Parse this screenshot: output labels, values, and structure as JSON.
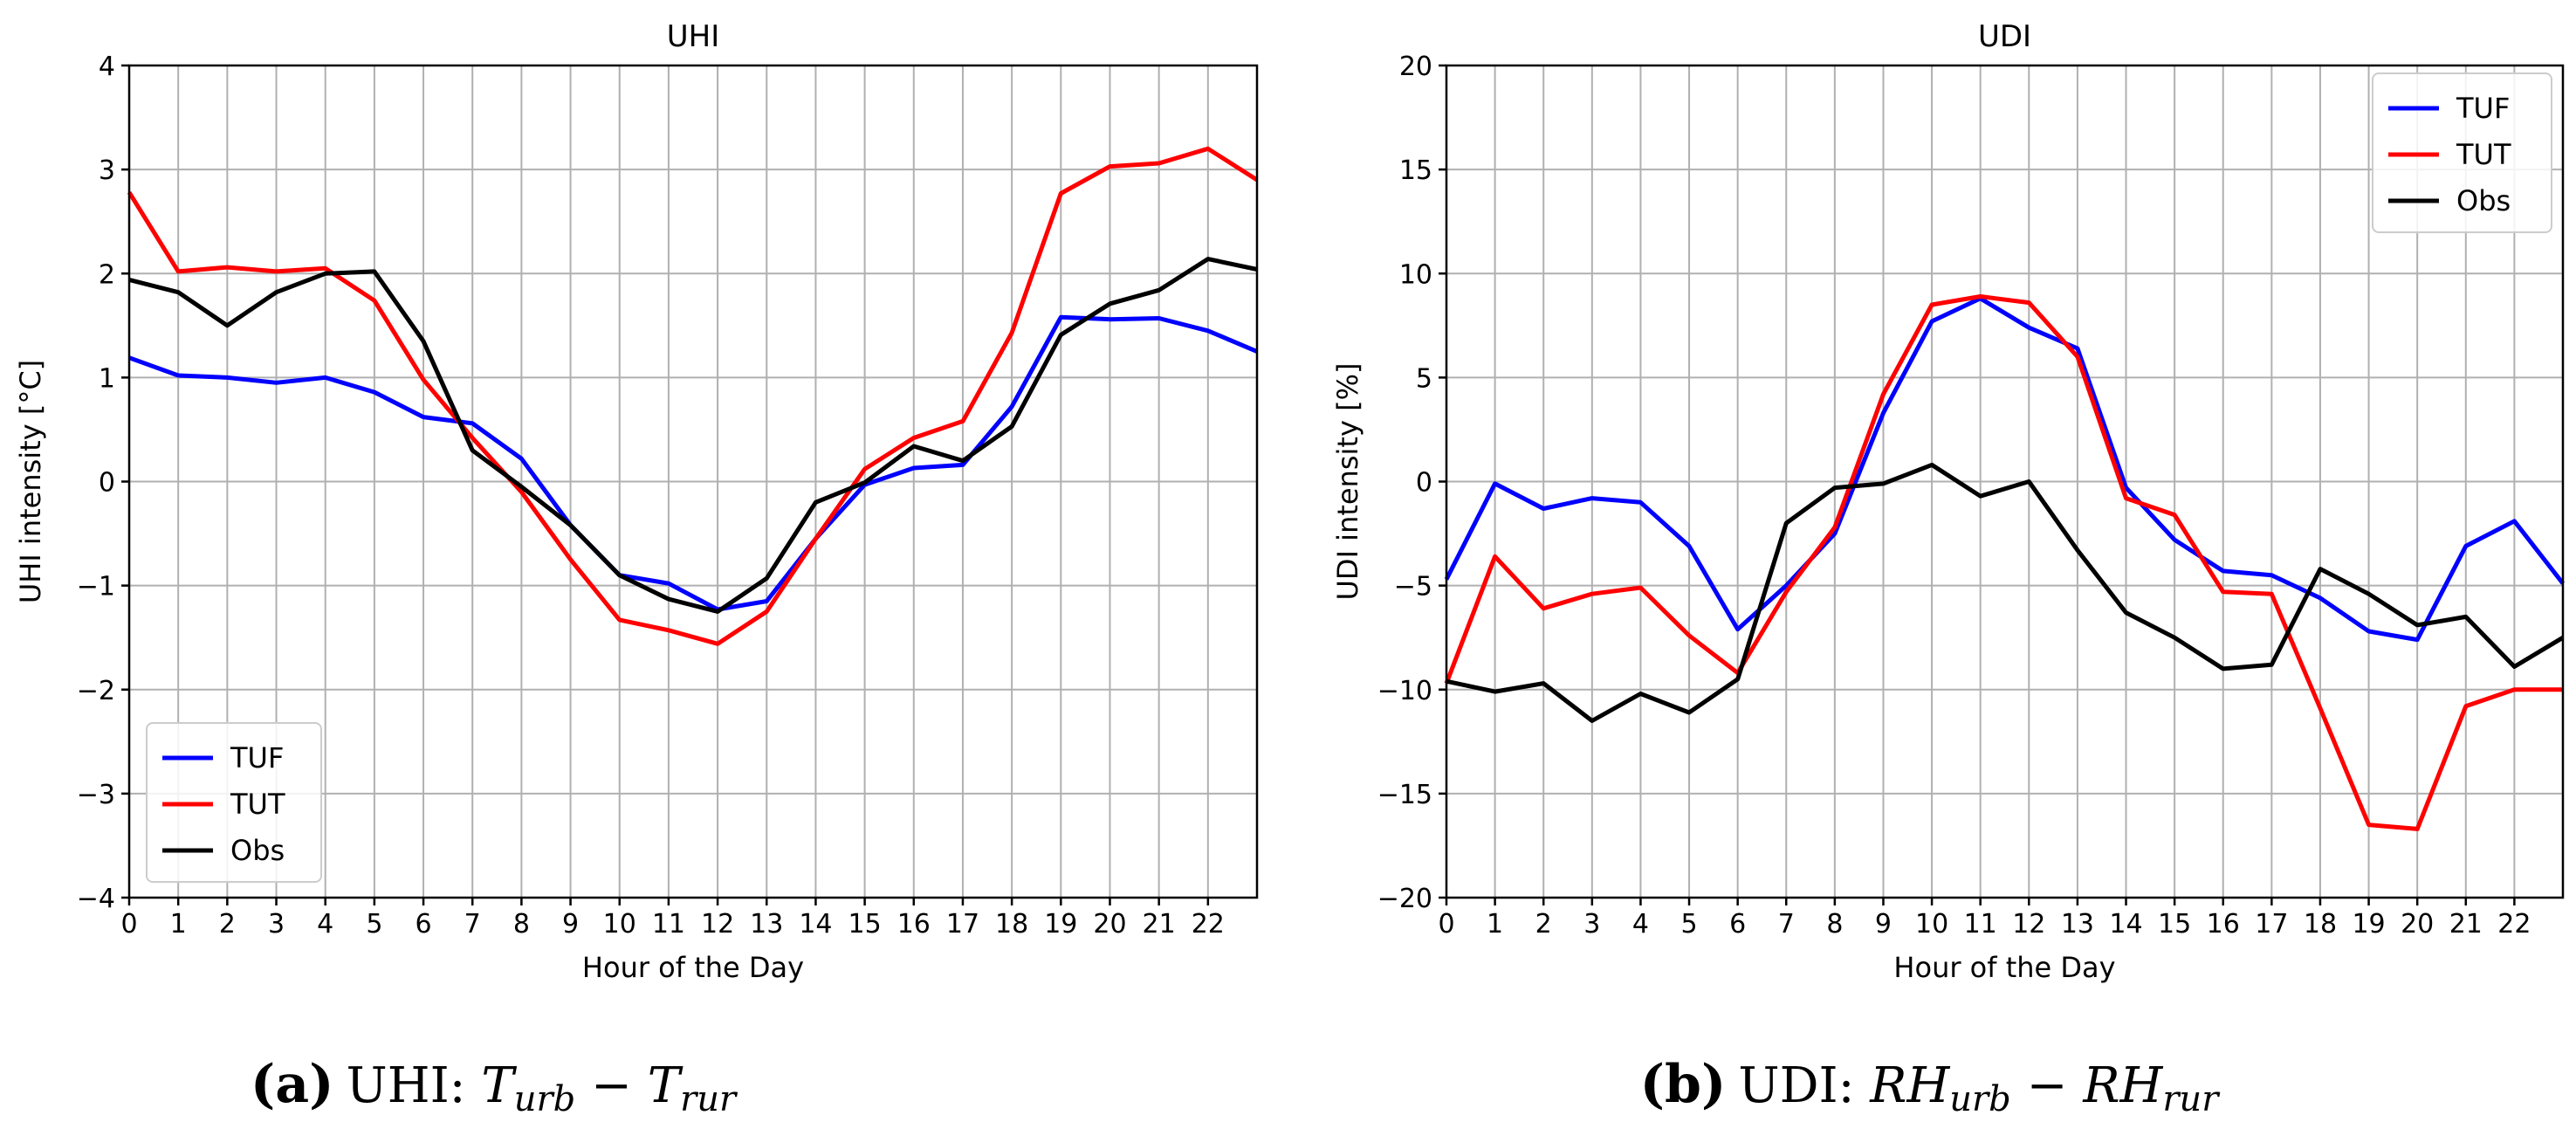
{
  "chart_data": [
    {
      "type": "line",
      "title": "UHI",
      "xlabel": "Hour of the Day",
      "ylabel": "UHI intensity [°C]",
      "xlim": [
        0,
        23
      ],
      "ylim": [
        -4,
        4
      ],
      "xticks": [
        0,
        1,
        2,
        3,
        4,
        5,
        6,
        7,
        8,
        9,
        10,
        11,
        12,
        13,
        14,
        15,
        16,
        17,
        18,
        19,
        20,
        21,
        22
      ],
      "yticks": [
        -4,
        -3,
        -2,
        -1,
        0,
        1,
        2,
        3,
        4
      ],
      "ytick_labels": [
        "−4",
        "−3",
        "−2",
        "−1",
        "0",
        "1",
        "2",
        "3",
        "4"
      ],
      "grid": true,
      "legend_position": "lower-left",
      "x": [
        0,
        1,
        2,
        3,
        4,
        5,
        6,
        7,
        8,
        9,
        10,
        11,
        12,
        13,
        14,
        15,
        16,
        17,
        18,
        19,
        20,
        21,
        22,
        23
      ],
      "series": [
        {
          "name": "TUF",
          "color": "#0000ff",
          "values": [
            1.19,
            1.02,
            1.0,
            0.95,
            1.0,
            0.86,
            0.62,
            0.56,
            0.22,
            -0.42,
            -0.9,
            -0.98,
            -1.23,
            -1.15,
            -0.55,
            -0.03,
            0.13,
            0.16,
            0.72,
            1.58,
            1.56,
            1.57,
            1.45,
            1.25
          ]
        },
        {
          "name": "TUT",
          "color": "#ff0000",
          "values": [
            2.78,
            2.02,
            2.06,
            2.02,
            2.05,
            1.74,
            0.98,
            0.42,
            -0.1,
            -0.75,
            -1.33,
            -1.43,
            -1.56,
            -1.25,
            -0.55,
            0.12,
            0.42,
            0.58,
            1.43,
            2.77,
            3.03,
            3.06,
            3.2,
            2.9
          ]
        },
        {
          "name": "Obs",
          "color": "#000000",
          "values": [
            1.94,
            1.82,
            1.5,
            1.82,
            2.0,
            2.02,
            1.35,
            0.3,
            -0.05,
            -0.42,
            -0.9,
            -1.13,
            -1.25,
            -0.93,
            -0.2,
            -0.01,
            0.34,
            0.2,
            0.53,
            1.41,
            1.71,
            1.84,
            2.14,
            2.04
          ]
        }
      ]
    },
    {
      "type": "line",
      "title": "UDI",
      "xlabel": "Hour of the Day",
      "ylabel": "UDI intensity [%]",
      "xlim": [
        0,
        23
      ],
      "ylim": [
        -20,
        20
      ],
      "xticks": [
        0,
        1,
        2,
        3,
        4,
        5,
        6,
        7,
        8,
        9,
        10,
        11,
        12,
        13,
        14,
        15,
        16,
        17,
        18,
        19,
        20,
        21,
        22
      ],
      "yticks": [
        -20,
        -15,
        -10,
        -5,
        0,
        5,
        10,
        15,
        20
      ],
      "ytick_labels": [
        "−20",
        "−15",
        "−10",
        "−5",
        "0",
        "5",
        "10",
        "15",
        "20"
      ],
      "grid": true,
      "legend_position": "top-right",
      "x": [
        0,
        1,
        2,
        3,
        4,
        5,
        6,
        7,
        8,
        9,
        10,
        11,
        12,
        13,
        14,
        15,
        16,
        17,
        18,
        19,
        20,
        21,
        22,
        23
      ],
      "series": [
        {
          "name": "TUF",
          "color": "#0000ff",
          "values": [
            -4.7,
            -0.1,
            -1.3,
            -0.8,
            -1.0,
            -3.1,
            -7.1,
            -5.0,
            -2.5,
            3.3,
            7.7,
            8.8,
            7.4,
            6.4,
            -0.3,
            -2.8,
            -4.3,
            -4.5,
            -5.6,
            -7.2,
            -7.6,
            -3.1,
            -1.9,
            -4.9
          ]
        },
        {
          "name": "TUT",
          "color": "#ff0000",
          "values": [
            -9.7,
            -3.6,
            -6.1,
            -5.4,
            -5.1,
            -7.4,
            -9.2,
            -5.3,
            -2.2,
            4.2,
            8.5,
            8.9,
            8.6,
            6.0,
            -0.8,
            -1.6,
            -5.3,
            -5.4,
            -10.9,
            -16.5,
            -16.7,
            -10.8,
            -10.0,
            -10.0
          ]
        },
        {
          "name": "Obs",
          "color": "#000000",
          "values": [
            -9.6,
            -10.1,
            -9.7,
            -11.5,
            -10.2,
            -11.1,
            -9.5,
            -2.0,
            -0.3,
            -0.1,
            0.8,
            -0.7,
            0.0,
            -3.3,
            -6.3,
            -7.5,
            -9.0,
            -8.8,
            -4.2,
            -5.4,
            -6.9,
            -6.5,
            -8.9,
            -7.5
          ]
        }
      ]
    }
  ],
  "captions": [
    {
      "label": "(a)",
      "prefix": "UHI: ",
      "a": "T",
      "a_sub": "urb",
      "op": " − ",
      "b": "T",
      "b_sub": "rur"
    },
    {
      "label": "(b)",
      "prefix": "UDI: ",
      "a": "RH",
      "a_sub": "urb",
      "op": " − ",
      "b": "RH",
      "b_sub": "rur"
    }
  ]
}
